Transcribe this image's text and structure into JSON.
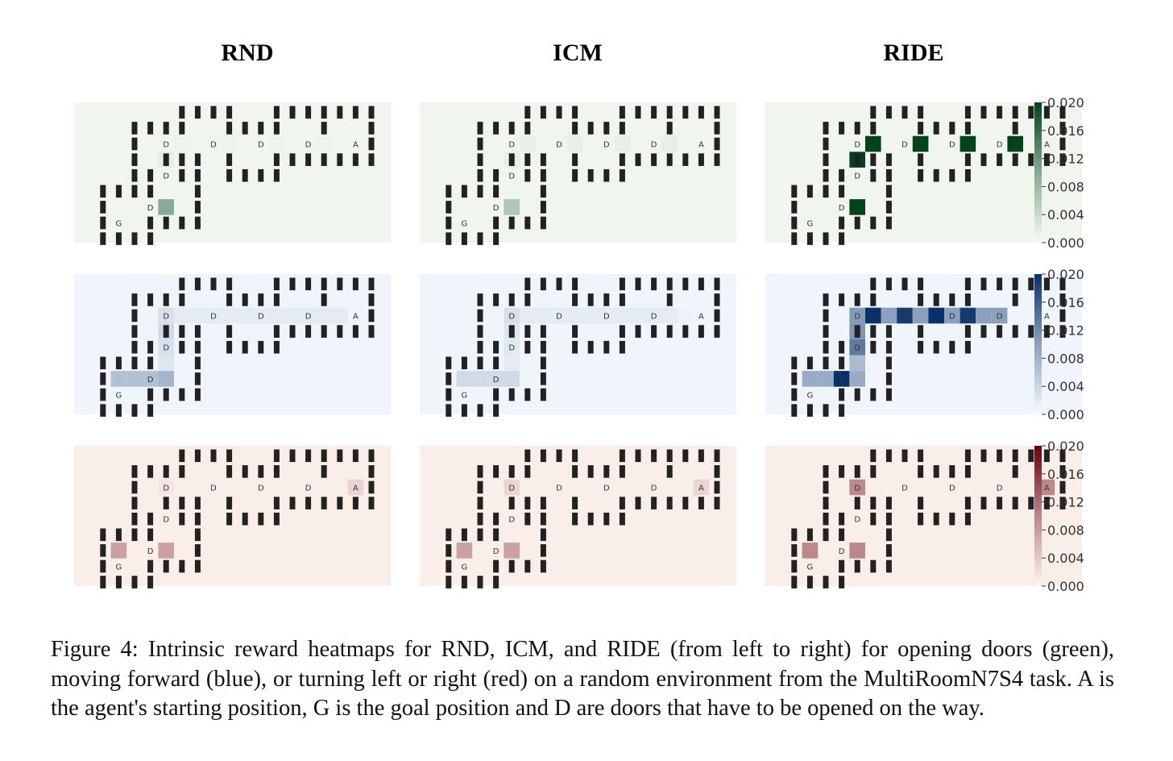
{
  "figure": {
    "column_titles": [
      "RND",
      "ICM",
      "RIDE"
    ],
    "rows": [
      {
        "action": "opening doors",
        "color_name": "green",
        "cmap": [
          "#f7fcf5",
          "#00441b"
        ]
      },
      {
        "action": "moving forward",
        "color_name": "blue",
        "cmap": [
          "#f7fbff",
          "#08306b"
        ]
      },
      {
        "action": "turning left or right",
        "color_name": "red",
        "cmap": [
          "#fff5f0",
          "#67000d"
        ]
      }
    ],
    "colorbar_ticks": [
      "0.000",
      "0.004",
      "0.008",
      "0.012",
      "0.016",
      "0.020"
    ],
    "wall_color": "#222222",
    "legend_letters": {
      "agent": "A",
      "goal": "G",
      "door": "D"
    }
  },
  "chart_data": {
    "type": "heatmap",
    "title": "",
    "grid": {
      "columns": 23,
      "rows": 9
    },
    "walls": [
      [
        5,
        0
      ],
      [
        6,
        0
      ],
      [
        7,
        0
      ],
      [
        8,
        0
      ],
      [
        11,
        0
      ],
      [
        12,
        0
      ],
      [
        13,
        0
      ],
      [
        14,
        0
      ],
      [
        15,
        0
      ],
      [
        16,
        0
      ],
      [
        17,
        0
      ],
      [
        2,
        1
      ],
      [
        3,
        1
      ],
      [
        4,
        1
      ],
      [
        5,
        1
      ],
      [
        8,
        1
      ],
      [
        9,
        1
      ],
      [
        10,
        1
      ],
      [
        11,
        1
      ],
      [
        14,
        1
      ],
      [
        17,
        1
      ],
      [
        2,
        2
      ],
      [
        17,
        2
      ],
      [
        2,
        3
      ],
      [
        4,
        3
      ],
      [
        5,
        3
      ],
      [
        6,
        3
      ],
      [
        8,
        3
      ],
      [
        11,
        3
      ],
      [
        12,
        3
      ],
      [
        13,
        3
      ],
      [
        14,
        3
      ],
      [
        15,
        3
      ],
      [
        16,
        3
      ],
      [
        17,
        3
      ],
      [
        2,
        4
      ],
      [
        3,
        4
      ],
      [
        5,
        4
      ],
      [
        6,
        4
      ],
      [
        8,
        4
      ],
      [
        9,
        4
      ],
      [
        10,
        4
      ],
      [
        11,
        4
      ],
      [
        0,
        5
      ],
      [
        1,
        5
      ],
      [
        2,
        5
      ],
      [
        3,
        5
      ],
      [
        6,
        5
      ],
      [
        0,
        6
      ],
      [
        6,
        6
      ],
      [
        0,
        7
      ],
      [
        3,
        7
      ],
      [
        4,
        7
      ],
      [
        5,
        7
      ],
      [
        6,
        7
      ],
      [
        0,
        8
      ],
      [
        1,
        8
      ],
      [
        2,
        8
      ],
      [
        3,
        8
      ]
    ],
    "markers": [
      {
        "label": "A",
        "cell": [
          16,
          2
        ]
      },
      {
        "label": "G",
        "cell": [
          1,
          7
        ]
      },
      {
        "label": "D",
        "cell": [
          4,
          2
        ]
      },
      {
        "label": "D",
        "cell": [
          7,
          2
        ]
      },
      {
        "label": "D",
        "cell": [
          10,
          2
        ]
      },
      {
        "label": "D",
        "cell": [
          13,
          2
        ]
      },
      {
        "label": "D",
        "cell": [
          4,
          4
        ]
      },
      {
        "label": "D",
        "cell": [
          3,
          6
        ]
      }
    ],
    "colorbar": {
      "min": 0.0,
      "max": 0.02
    },
    "panels": [
      {
        "row": 0,
        "col": 0,
        "cells": [
          [
            4,
            6,
            0.0085
          ],
          [
            4,
            3,
            0.0015
          ],
          [
            5,
            2,
            0.0008
          ],
          [
            8,
            2,
            0.0008
          ],
          [
            11,
            2,
            0.0008
          ],
          [
            14,
            2,
            0.0008
          ]
        ]
      },
      {
        "row": 0,
        "col": 1,
        "cells": [
          [
            4,
            6,
            0.0055
          ],
          [
            4,
            3,
            0.0012
          ],
          [
            5,
            2,
            0.0012
          ],
          [
            8,
            2,
            0.0012
          ],
          [
            11,
            2,
            0.0012
          ],
          [
            14,
            2,
            0.0012
          ]
        ]
      },
      {
        "row": 0,
        "col": 2,
        "cells": [
          [
            4,
            6,
            0.019
          ],
          [
            4,
            3,
            0.019
          ],
          [
            5,
            2,
            0.02
          ],
          [
            8,
            2,
            0.02
          ],
          [
            11,
            2,
            0.02
          ],
          [
            14,
            2,
            0.02
          ]
        ]
      },
      {
        "row": 1,
        "col": 0,
        "cells": [
          [
            5,
            2,
            0.0015
          ],
          [
            6,
            2,
            0.0015
          ],
          [
            7,
            2,
            0.0015
          ],
          [
            8,
            2,
            0.0015
          ],
          [
            9,
            2,
            0.0015
          ],
          [
            10,
            2,
            0.0015
          ],
          [
            11,
            2,
            0.0015
          ],
          [
            12,
            2,
            0.0015
          ],
          [
            13,
            2,
            0.0015
          ],
          [
            14,
            2,
            0.0015
          ],
          [
            15,
            2,
            0.0015
          ],
          [
            4,
            2,
            0.0025
          ],
          [
            4,
            3,
            0.003
          ],
          [
            4,
            4,
            0.0025
          ],
          [
            4,
            5,
            0.002
          ],
          [
            1,
            6,
            0.0055
          ],
          [
            2,
            6,
            0.0055
          ],
          [
            3,
            6,
            0.0055
          ],
          [
            4,
            6,
            0.0065
          ]
        ]
      },
      {
        "row": 1,
        "col": 1,
        "cells": [
          [
            5,
            2,
            0.0015
          ],
          [
            6,
            2,
            0.0015
          ],
          [
            7,
            2,
            0.0015
          ],
          [
            8,
            2,
            0.0015
          ],
          [
            9,
            2,
            0.0015
          ],
          [
            10,
            2,
            0.0015
          ],
          [
            11,
            2,
            0.0015
          ],
          [
            12,
            2,
            0.0015
          ],
          [
            13,
            2,
            0.0015
          ],
          [
            14,
            2,
            0.0015
          ],
          [
            15,
            2,
            0.0008
          ],
          [
            4,
            2,
            0.0025
          ],
          [
            4,
            3,
            0.002
          ],
          [
            4,
            4,
            0.0018
          ],
          [
            4,
            5,
            0.0015
          ],
          [
            1,
            6,
            0.003
          ],
          [
            2,
            6,
            0.003
          ],
          [
            3,
            6,
            0.003
          ],
          [
            4,
            6,
            0.0032
          ]
        ]
      },
      {
        "row": 1,
        "col": 2,
        "cells": [
          [
            4,
            2,
            0.009
          ],
          [
            5,
            2,
            0.02
          ],
          [
            6,
            2,
            0.0085
          ],
          [
            7,
            2,
            0.018
          ],
          [
            8,
            2,
            0.0085
          ],
          [
            9,
            2,
            0.0195
          ],
          [
            10,
            2,
            0.0085
          ],
          [
            11,
            2,
            0.018
          ],
          [
            12,
            2,
            0.0085
          ],
          [
            13,
            2,
            0.0085
          ],
          [
            4,
            3,
            0.0095
          ],
          [
            4,
            4,
            0.012
          ],
          [
            4,
            5,
            0.006
          ],
          [
            1,
            6,
            0.0075
          ],
          [
            2,
            6,
            0.0075
          ],
          [
            3,
            6,
            0.02
          ],
          [
            4,
            6,
            0.0075
          ]
        ]
      },
      {
        "row": 2,
        "col": 0,
        "cells": [
          [
            16,
            2,
            0.0025
          ],
          [
            4,
            2,
            0.0012
          ],
          [
            1,
            6,
            0.0065
          ],
          [
            4,
            6,
            0.0065
          ]
        ]
      },
      {
        "row": 2,
        "col": 1,
        "cells": [
          [
            16,
            2,
            0.0025
          ],
          [
            4,
            2,
            0.0025
          ],
          [
            1,
            6,
            0.0065
          ],
          [
            4,
            6,
            0.0065
          ]
        ]
      },
      {
        "row": 2,
        "col": 2,
        "cells": [
          [
            16,
            2,
            0.0085
          ],
          [
            4,
            2,
            0.0085
          ],
          [
            1,
            6,
            0.0085
          ],
          [
            4,
            6,
            0.0085
          ]
        ]
      }
    ]
  },
  "caption": "Figure 4: Intrinsic reward heatmaps for RND, ICM, and RIDE (from left to right) for opening doors (green), moving forward (blue), or turning left or right (red) on a random environment from the MultiRoomN7S4 task. A is the agent's starting position, G is the goal position and D are doors that have to be opened on the way."
}
